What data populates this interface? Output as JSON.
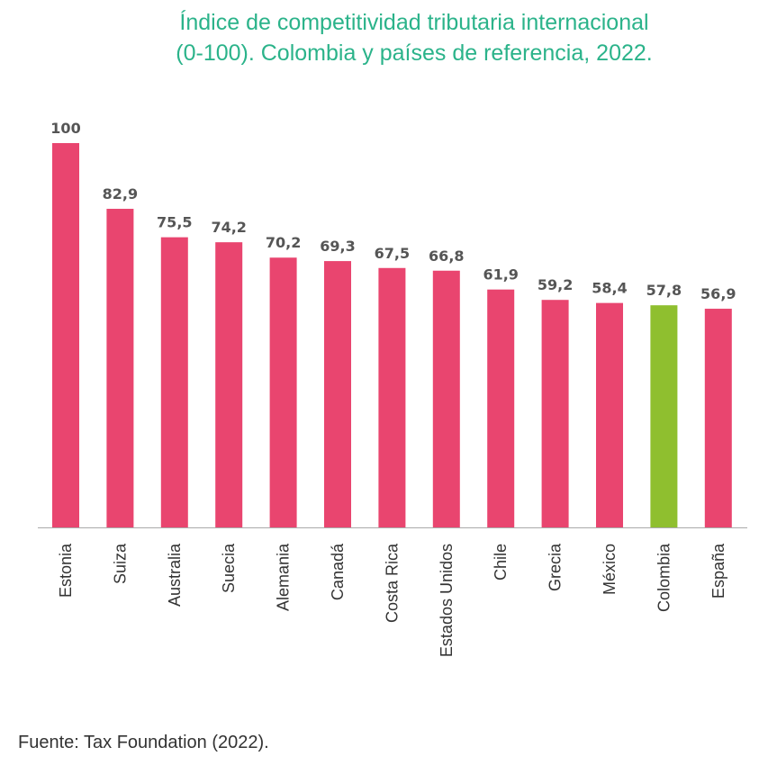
{
  "title_line1": "Índice de competitividad tributaria internacional",
  "title_line2": "(0-100). Colombia y países de referencia, 2022.",
  "source": "Fuente: Tax Foundation (2022).",
  "colors": {
    "bar": "#e9456f",
    "highlight": "#8fbf2f",
    "title": "#2bb38a",
    "axis": "#aaaaaa"
  },
  "chart_data": {
    "type": "bar",
    "title": "Índice de competitividad tributaria internacional (0-100). Colombia y países de referencia, 2022.",
    "categories": [
      "Estonia",
      "Suiza",
      "Australia",
      "Suecia",
      "Alemania",
      "Canadá",
      "Costa Rica",
      "Estados Unidos",
      "Chile",
      "Grecia",
      "México",
      "Colombia",
      "España"
    ],
    "values": [
      100,
      82.9,
      75.5,
      74.2,
      70.2,
      69.3,
      67.5,
      66.8,
      61.9,
      59.2,
      58.4,
      57.8,
      56.9
    ],
    "value_labels": [
      "100",
      "82,9",
      "75,5",
      "74,2",
      "70,2",
      "69,3",
      "67,5",
      "66,8",
      "61,9",
      "59,2",
      "58,4",
      "57,8",
      "56,9"
    ],
    "highlight": "Colombia",
    "ylim": [
      0,
      100
    ],
    "grid": false,
    "xlabel": "",
    "ylabel": ""
  }
}
